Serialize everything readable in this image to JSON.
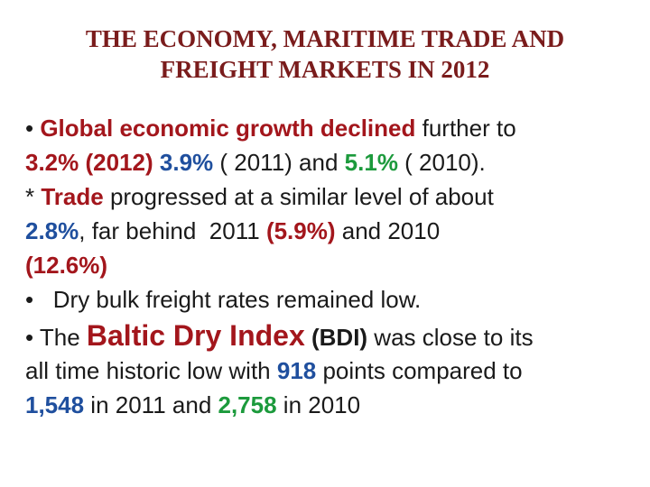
{
  "header": {
    "title": [
      "THE ECONOMY, MARITIME TRADE AND",
      "FREIGHT MARKETS IN 2012"
    ]
  },
  "body": {
    "lines": [
      {
        "runs": [
          "• ",
          "Global economic growth declined",
          " further to"
        ]
      },
      {
        "runs": [
          "3.2% (2012)",
          " ",
          "3.9%",
          " ( 2011) and ",
          "5.1%",
          " ( 2010)."
        ]
      },
      {
        "runs": [
          "* ",
          "Trade",
          " progressed at a similar level of about"
        ]
      },
      {
        "runs": [
          "2.8%",
          ", far behind  2011 ",
          "(5.9%)",
          " and 2010"
        ]
      },
      {
        "runs": [
          "(12.6%)"
        ]
      },
      {
        "runs": [
          "•   Dry bulk freight rates remained low."
        ]
      },
      {
        "runs": [
          "• The ",
          "Baltic Dry Index",
          " ",
          "(BDI)",
          " was close to its"
        ]
      },
      {
        "runs": [
          "all time historic low with ",
          "918",
          " points compared to"
        ]
      },
      {
        "runs": [
          "1,548",
          " in 2011 and ",
          "2,758",
          " in 2010"
        ]
      }
    ]
  }
}
